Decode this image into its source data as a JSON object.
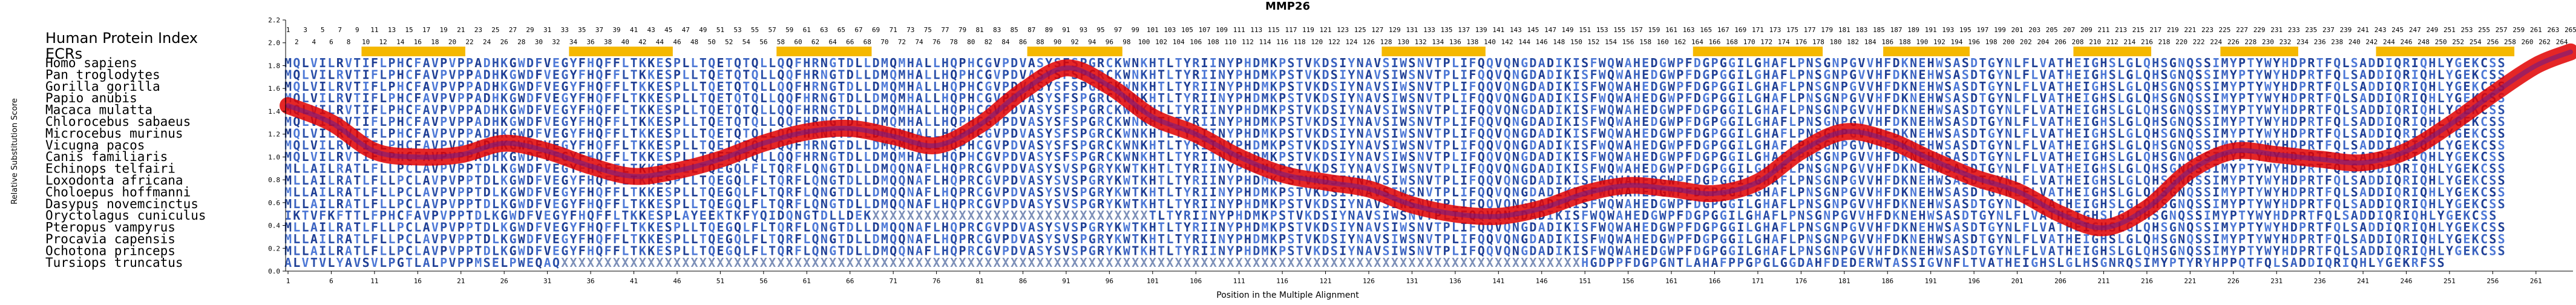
{
  "chart_data": {
    "type": "line",
    "title": "MMP26",
    "index_label": "Human Protein Index",
    "ecr_label": "ECRs",
    "xlabel": "Position in the Multiple Alignment",
    "ylabel": "Relative Substitution Score",
    "xlim": [
      1,
      265
    ],
    "ylim": [
      0,
      2.2
    ],
    "y_ticks": [
      0.0,
      0.2,
      0.4,
      0.6,
      0.8,
      1.0,
      1.2,
      1.4,
      1.6,
      1.8,
      2.0,
      2.2
    ],
    "y_tick_labels": [
      "0.0",
      "0.2",
      "0.4",
      "0.6",
      "0.8",
      "1.0",
      "1.2",
      "1.4",
      "1.6",
      "1.8",
      "2.0",
      "2.2"
    ],
    "x_ticks": [
      1,
      6,
      11,
      16,
      21,
      26,
      31,
      36,
      41,
      46,
      51,
      56,
      61,
      66,
      71,
      76,
      81,
      86,
      91,
      96,
      101,
      106,
      111,
      116,
      121,
      126,
      131,
      136,
      141,
      146,
      151,
      156,
      161,
      166,
      171,
      176,
      181,
      186,
      191,
      196,
      201,
      206,
      211,
      216,
      221,
      226,
      231,
      236,
      241,
      246,
      251,
      256,
      261
    ],
    "x_tick_labels": [
      "1",
      "6",
      "11",
      "16",
      "21",
      "26",
      "31",
      "36",
      "41",
      "46",
      "51",
      "56",
      "61",
      "66",
      "71",
      "76",
      "81",
      "86",
      "91",
      "96",
      "101",
      "106",
      "111",
      "116",
      "121",
      "126",
      "131",
      "136",
      "141",
      "146",
      "151",
      "156",
      "161",
      "166",
      "171",
      "176",
      "181",
      "186",
      "191",
      "196",
      "201",
      "206",
      "211",
      "216",
      "221",
      "226",
      "231",
      "236",
      "241",
      "246",
      "251",
      "256",
      "261"
    ],
    "ecr_regions": [
      [
        10,
        21
      ],
      [
        34,
        45
      ],
      [
        58,
        68
      ],
      [
        87,
        97
      ],
      [
        128,
        139
      ],
      [
        164,
        178
      ],
      [
        186,
        195
      ],
      [
        208,
        216
      ],
      [
        225,
        233
      ],
      [
        243,
        258
      ]
    ],
    "species": [
      "Homo sapiens",
      "Pan troglodytes",
      "Gorilla gorilla",
      "Papio anubis",
      "Macaca mulatta",
      "Chlorocebus sabaeus",
      "Microcebus murinus",
      "Vicugna pacos",
      "Canis familiaris",
      "Echinops telfairi",
      "Loxodonta africana",
      "Choloepus hoffmanni",
      "Dasypus novemcinctus",
      "Oryctolagus cuniculus",
      "Pteropus vampyrus",
      "Procavia capensis",
      "Ochotona princeps",
      "Tursiops truncatus"
    ],
    "alignment": [
      "MQLVILRVTIFLPHCFAVPVPPADHKGWDFVEGYFHQFFLTKKESPLLTQETQTQLLQQFHRNGTDLLDMQMHALLHQPHCGVPDVASYSFSPGRCKWNKHTLTYRIINYPHDMKPSTVKDSIYNAVSIWSNVTPLIFQQVQNGDADIKISFWQWAHEDGWPFDGPGGILGHAFLPNSGNPGVVHFDKNEHWSASDTGYNLFLVATHEIGHSLGLQHSGNQSSIMYPTYWYHDPRTFQLSADDIQRIQHLYGEKCSS",
      "MQLVILRVTIFLPHCFAVPVPPADHKGWDFVEGYFHQFFLTKKESPLLTQETQTQLLQQFHRNGTDLLDMQMHALLHQPHCGVPDVASYSFSPGRCKWNKHTLTYRIINYPHDMKPSTVKDSIYNAVSIWSNVTPLIFQQVQNGDADIKISFWQWAHEDGWPFDGPGGILGHAFLPNSGNPGVVHFDKNEHWSASDTGYNLFLVATHEIGHSLGLQHSGNQSSIMYPTYWYHDPRTFQLSADDIQRIQHLYGEKCSS",
      "MQLVILRVTIFLPHCFAVPVPPADHKGWDFVEGYFHQFFLTKKESPLLTQETQTQLLQQFHRNGTDLLDMQMHALLHQPHCGVPDVASYSFSPGRCKWNKHTLTYRIINYPHDMKPSTVKDSIYNAVSIWSNVTPLIFQQVQNGDADIKISFWQWAHEDGWPFDGPGGILGHAFLPNSGNPGVVHFDKNEHWSASDTGYNLFLVATHEIGHSLGLQHSGNQSSIMYPTYWYHDPRTFQLSADDIQRIQHLYGEKCSS",
      "MQLVILRVTIFLPHCFAVPVPPADHKGWDFVEGYFHQFFLTKKESPLLTQETQTQLLQQFHRNGTDLLDMQMHALLHQPHCGVPDVASYSFSPGRCKWNKHTLTYRIINYPHDMKPSTVKDSIYNAVSIWSNVTPLIFQQVQNGDADIKISFWQWAHEDGWPFDGPGGILGHAFLPNSGNPGVVHFDKNEHWSASDTGYNLFLVATHEIGHSLGLQHSGNQSSIMYPTYWYHDPRTFQLSADDIQRIQHLYGEKCSS",
      "MQLVILRVTIFLPHCFAVPVPPADHKGWDFVEGYFHQFFLTKKESPLLTQETQTQLLQQFHRNGTDLLDMQMHALLHQPHCGVPDVASYSFSPGRCKWNKHTLTYRIINYPHDMKPSTVKDSIYNAVSIWSNVTPLIFQQVQNGDADIKISFWQWAHEDGWPFDGPGGILGHAFLPNSGNPGVVHFDKNEHWSASDTGYNLFLVATHEIGHSLGLQHSGNQSSIMYPTYWYHDPRTFQLSADDIQRIQHLYGEKCSS",
      "MQLVILRVTIFLPHCFAVPVPPADHKGWDFVEGYFHQFFLTKKESPLLTQETQTQLLQQFHRNGTDLLDMQMHALLHQPHCGVPDVASYSFSPGRCKWNKHTLTYRIINYPHDMKPSTVKDSIYNAVSIWSNVTPLIFQQVQNGDADIKISFWQWAHEDGWPFDGPGGILGHAFLPNSGNPGVVHFDKNEHWSASDTGYNLFLVATHEIGHSLGLQHSGNQSSIMYPTYWYHDPRTFQLSADDIQRIQHLYGEKCSS",
      "MQLVILRVTIFLPHCFAVPVPPADHKGWDFVEGYFHQFFLTKKESPLLTQETQTQLLQQFHRNGTDLLDMQMHALLHQPHCGVPDVASYSFSPGRCKWNKHTLTYRIINYPHDMKPSTVKDSIYNAVSIWSNVTPLIFQQVQNGDADIKISFWQWAHEDGWPFDGPGGILGHAFLPNSGNPGVVHFDKNEHWSASDTGYNLFLVATHEIGHSLGLQHSGNQSSIMYPTYWYHDPRTFQLSADDIQRIQHLYGEKCSS",
      "MQLVILRVTIFLPHCFAVPVPPADHKGWDFVEGYFHQFFLTKKESPLLTQETQTQLLQQFHRNGTDLLDMQMHALLHQPHCGVPDVASYSFSPGRCKWNKHTLTYRIINYPHDMKPSTVKDSIYNAVSIWSNVTPLIFQQVQNGDADIKISFWQWAHEDGWPFDGPGGILGHAFLPNSGNPGVVHFDKNEHWSASDTGYNLFLVATHEIGHSLGLQHSGNQSSIMYPTYWYHDPRTFQLSADDIQRIQHLYGEKCSS",
      "MQLVILRVTIFLPHCFAVPVPPADHKGWDFVEGYFHQFFLTKKESPLLTQETQTQLLQQFHRNGTDLLDMQMHALLHQPHCGVPDVASYSFSPGRCKWNKHTLTYRIINYPHDMKPSTVKDSIYNAVSIWSNVTPLIFQQVQNGDADIKISFWQWAHEDGWPFDGPGGILGHAFLPNSGNPGVVHFDKNEHWSASDTGYNLFLVATHEIGHSLGLQHSGNQSSIMYPTYWYHDPRTFQLSADDIQRIQHLYGEKCSS",
      "MLLAILRATLFLLPCLAVPVPPTDLKGWDFVEGYFHQFFLTKKESPLLTQEGQLFLTQRFLQNGTDLLDMQQNAFLHQPRCGVPDVASYSVSPGRYKWTKHTLTYRIINYPHDMKPSTVKDSIYNAVSIWSNVTPLIFQQVQNGDADIKISFWQWAHEDGWPFDGPGGILGHAFLPNSGNPGVVHFDKNEHWSASDTGYNLFLVATHEIGHSLGLQHSGNQSSIMYPTYWYHDPRTFQLSADDIQRIQHLYGEKCSS",
      "MLLAILRATLFLLPCLAVPVPPTDLKGWDFVEGYFHQFFLTKKESPLLTQEGQLFLTQRFLQNGTDLLDMQQNAFLHQPRCGVPDVASYSVSPGRYKWTKHTLTYRIINYPHDMKPSTVKDSIYNAVSIWSNVTPLIFQQVQNGDADIKISFWQWAHEDGWPFDGPGGILGHAFLPNSGNPGVVHFDKNEHWSASDTGYNLFLVATHEIGHSLGLQHSGNQSSIMYPTYWYHDPRTFQLSADDIQRIQHLYGEKCSS",
      "MLLAILRATLFLLPCLAVPVPPTDLKGWDFVEGYFHQFFLTKKESPLLTQEGQLFLTQRFLQNGTDLLDMQQNAFLHQPRCGVPDVASYSVSPGRYKWTKHTLTYRIINYPHDMKPSTVKDSIYNAVSIWSNVTPLIFQQVQNGDADIKISFWQWAHEDGWPFDGPGGILGHAFLPNSGNPGVVHFDKNEHWSASDTGYNLFLVATHEIGHSLGLQHSGNQSSIMYPTYWYHDPRTFQLSADDIQRIQHLYGEKCSS",
      "MLLAILRATLFLLPCLAVPVPPTDLKGWDFVEGYFHQFFLTKKESPLLTQEGQLFLTQRFLQNGTDLLDMQQNAFLHQPRCGVPDVASYSVSPGRYKWTKHTLTYRIINYPHDMKPSTVKDSIYNAVSIWSNVTPLIFQQVQNGDADIKISFWQWAHEDGWPFDGPGGILGHAFLPNSGNPGVVHFDKNEHWSASDTGYNLFLVATHEIGHSLGLQHSGNQSSIMYPTYWYHDPRTFQLSADDIQRIQHLYGEKCSS",
      "IKTVFKFTTLFPHCFAVPVPPTDLKGWDFVEGYFHQFFLTKKESPLAYEEKTKFYQIDQNGTDLLDEKXXXXXXXXXXXXXXXXXXXXXXXXXXXXXXXXTLTYRIINYPHDMKPSTVKDSIYNAVSIWSNVTPLIFQQVQNGDADIKISFWQWAHEDGWPFDGPGGILGHAFLPNSGNPGVVHFDKNEHWSASDTGYNLFLVATHEIGHSLGLQHSGNQSSIMYPTYWYHDPRTFQLSADDIQRIQHLYGEKCSS",
      "MLLAILRATLFLLPCLAVPVPPTDLKGWDFVEGYFHQFFLTKKESPLLTQEGQLFLTQRFLQNGTDLLDMQQNAFLHQPRCGVPDVASYSVSPGRYKWTKHTLTYRIINYPHDMKPSTVKDSIYNAVSIWSNVTPLIFQQVQNGDADIKISFWQWAHEDGWPFDGPGGILGHAFLPNSGNPGVVHFDKNEHWSASDTGYNLFLVATHEIGHSLGLQHSGNQSSIMYPTYWYHDPRTFQLSADDIQRIQHLYGEKCSS",
      "MLLAILRATLFLLPCLAVPVPPTDLKGWDFVEGYFHQFFLTKKESPLLTQEGQLFLTQRFLQNGTDLLDMQQNAFLHQPRCGVPDVASYSVSPGRYKWTKHTLTYRIINYPHDMKPSTVKDSIYNAVSIWSNVTPLIFQQVQNGDADIKISFWQWAHEDGWPFDGPGGILGHAFLPNSGNPGVVHFDKNEHWSASDTGYNLFLVATHEIGHSLGLQHSGNQSSIMYPTYWYHDPRTFQLSADDIQRIQHLYGEKCSS",
      "MLLAILRATLFLLPCLAVPVPPTDLKGWDFVEGYFHQFFLTKKESPLLTQEGQLFLTQRFLQNGTDLLDMQQNAFLHQPRCGVPDVASYSVSPGRYKWTKHTLTYRIINYPHDMKPSTVKDSIYNAVSIWSNVTPLIFQQVQNGDADIKISFWQWAHEDGWPFDGPGGILGHAFLPNSGNPGVVHFDKNEHWSASDTGYNLFLVATHEIGHSLGLQHSGNQSSIMYPTYWYHDPRTFQLSADDIQRIQHLYGEKCSS",
      "ALVTVLYAVSVLPGTLALPVPPMSELPWEQAQXXXXXXXXXXXXXXXXXXXXXXXXXXXXXXXXXXXXXXXXXXXXXXXXXXXXXXXXXXXXXXXXXXXXXXXXXXXXXXXXXXXXXXXXXXXXXXXXXXXXXXXXXXXXXXXXXXXXXXHGDPPFDGPGNTLAHAFPPGPGLGGDAHFDEDERWTASSIGVNFLTVATHEIGHSLGLHSGNRQSIMYPTYRYHPPQTFQLSADDIQRIQHLYGEKRFSS"
    ],
    "series": [
      {
        "x": [
          1,
          6,
          11,
          16,
          21,
          26,
          31,
          36,
          41,
          46,
          51,
          56,
          61,
          66,
          71,
          76,
          81,
          86,
          91,
          96,
          101,
          106,
          111,
          116,
          121,
          126,
          131,
          136,
          141,
          146,
          151,
          156,
          161,
          166,
          171,
          176,
          181,
          186,
          191,
          196,
          201,
          206,
          211,
          216,
          221,
          226,
          231,
          236,
          241,
          246,
          251,
          256,
          261,
          265
        ],
        "y": [
          1.45,
          1.3,
          1.05,
          1.0,
          1.02,
          1.12,
          1.05,
          0.92,
          0.83,
          0.88,
          0.98,
          1.12,
          1.22,
          1.25,
          1.18,
          1.1,
          1.28,
          1.58,
          1.78,
          1.62,
          1.35,
          1.2,
          1.0,
          0.85,
          0.78,
          0.72,
          0.58,
          0.5,
          0.48,
          0.55,
          0.68,
          0.75,
          0.72,
          0.68,
          0.78,
          1.05,
          1.22,
          1.15,
          0.98,
          0.82,
          0.7,
          0.5,
          0.38,
          0.55,
          0.88,
          1.05,
          1.02,
          0.98,
          0.95,
          1.05,
          1.28,
          1.55,
          1.8,
          1.92
        ]
      }
    ],
    "grid": false,
    "legend": "none"
  }
}
